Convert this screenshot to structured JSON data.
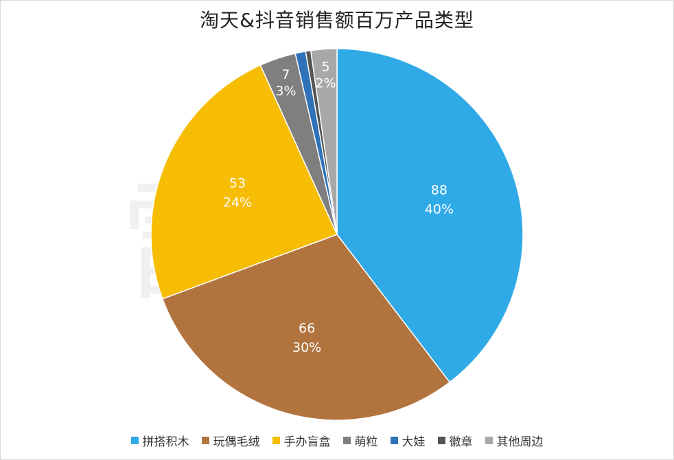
{
  "chart_data": {
    "type": "pie",
    "title": "淘天&抖音销售额百万产品类型",
    "watermark": "雷 报",
    "slices": [
      {
        "name": "拼搭积木",
        "value": 88,
        "percent_label": "40%",
        "value_label": "88",
        "color": "#30aae6"
      },
      {
        "name": "玩偶毛绒",
        "value": 66,
        "percent_label": "30%",
        "value_label": "66",
        "color": "#b2743f"
      },
      {
        "name": "手办盲盒",
        "value": 53,
        "percent_label": "24%",
        "value_label": "53",
        "color": "#f6bd04"
      },
      {
        "name": "萌粒",
        "value": 7,
        "percent_label": "3%",
        "value_label": "7",
        "color": "#7f7f7f"
      },
      {
        "name": "大娃",
        "value": 2,
        "percent_label": "",
        "value_label": "",
        "color": "#2f72b8"
      },
      {
        "name": "徽章",
        "value": 1,
        "percent_label": "",
        "value_label": "",
        "color": "#555555"
      },
      {
        "name": "其他周边",
        "value": 5,
        "percent_label": "2%",
        "value_label": "5",
        "color": "#a8a8a8"
      }
    ],
    "legend_position": "bottom"
  }
}
